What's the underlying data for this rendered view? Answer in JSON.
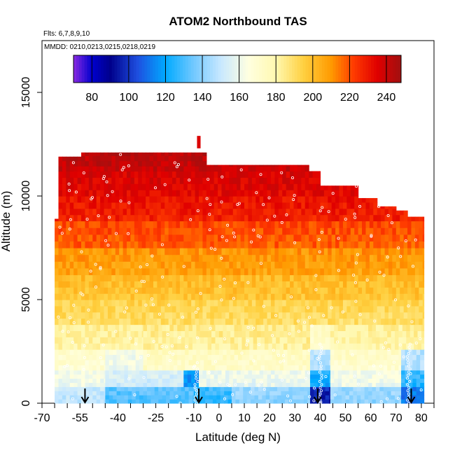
{
  "chart_data": {
    "type": "heatmap",
    "title": "ATOM2 Northbound TAS",
    "annotations": {
      "flights": "Flts: 6,7,8,9,10",
      "dates": "MMDD: 0210,0213,0215,0218,0219"
    },
    "xlabel": "Latitude (deg N)",
    "ylabel": "Altitude (m)",
    "xlim": [
      -70,
      85
    ],
    "ylim": [
      0,
      17500
    ],
    "x_ticks": [
      -70,
      -55,
      -40,
      -25,
      -10,
      0,
      10,
      20,
      30,
      40,
      50,
      60,
      70,
      80
    ],
    "x_tick_labels": [
      "-70",
      "-55",
      "-40",
      "-25",
      "-10",
      "0",
      "10",
      "20",
      "30",
      "40",
      "50",
      "60",
      "70",
      "80"
    ],
    "y_ticks": [
      0,
      5000,
      10000,
      15000
    ],
    "y_tick_labels": [
      "0",
      "5000",
      "10000",
      "15000"
    ],
    "colorbar": {
      "range": [
        70,
        248
      ],
      "ticks": [
        80,
        100,
        120,
        140,
        160,
        180,
        200,
        220,
        240
      ],
      "tick_labels": [
        "80",
        "100",
        "120",
        "140",
        "160",
        "180",
        "200",
        "220",
        "240"
      ],
      "palette_stops": [
        [
          70,
          "#8A2BE2"
        ],
        [
          80,
          "#0000CD"
        ],
        [
          90,
          "#00008B"
        ],
        [
          105,
          "#1E50E0"
        ],
        [
          120,
          "#00AAFF"
        ],
        [
          135,
          "#70C8FF"
        ],
        [
          150,
          "#C8E8FF"
        ],
        [
          165,
          "#FFFFE0"
        ],
        [
          180,
          "#FFF8B0"
        ],
        [
          195,
          "#FFD040"
        ],
        [
          210,
          "#FF9A00"
        ],
        [
          222,
          "#FF3C00"
        ],
        [
          235,
          "#E00000"
        ],
        [
          248,
          "#A01010"
        ]
      ]
    },
    "description": "Northbound curtain of true airspeed (TAS); speed increases with altitude, low values near surface and in profiles near 38N and 75N.",
    "top_boundary": [
      [
        -63,
        11900
      ],
      [
        -55,
        12100
      ],
      [
        -45,
        12100
      ],
      [
        -30,
        12100
      ],
      [
        -20,
        12100
      ],
      [
        -10,
        12100
      ],
      [
        -5,
        11500
      ],
      [
        5,
        11500
      ],
      [
        15,
        11500
      ],
      [
        25,
        11500
      ],
      [
        35,
        11200
      ],
      [
        40,
        10500
      ],
      [
        50,
        10500
      ],
      [
        55,
        9900
      ],
      [
        62,
        9500
      ],
      [
        70,
        9300
      ],
      [
        75,
        9000
      ],
      [
        81,
        8900
      ]
    ],
    "rows": [
      {
        "alt": [
          0,
          800
        ],
        "lat_segments": [
          [
            -65,
            -45,
            148
          ],
          [
            -45,
            -10,
            130
          ],
          [
            -10,
            5,
            125
          ],
          [
            5,
            36,
            140
          ],
          [
            36,
            44,
            95
          ],
          [
            44,
            72,
            140
          ],
          [
            72,
            81,
            110
          ]
        ]
      },
      {
        "alt": [
          800,
          1600
        ],
        "lat_segments": [
          [
            -65,
            -45,
            160
          ],
          [
            -45,
            -14,
            152
          ],
          [
            -14,
            -8,
            115
          ],
          [
            -8,
            36,
            158
          ],
          [
            36,
            44,
            120
          ],
          [
            44,
            72,
            160
          ],
          [
            72,
            81,
            125
          ]
        ]
      },
      {
        "alt": [
          1600,
          2600
        ],
        "lat_segments": [
          [
            -65,
            -45,
            168
          ],
          [
            -45,
            -30,
            160
          ],
          [
            -30,
            36,
            172
          ],
          [
            36,
            44,
            145
          ],
          [
            44,
            72,
            170
          ],
          [
            72,
            81,
            145
          ]
        ]
      },
      {
        "alt": [
          2600,
          3800
        ],
        "lat_segments": [
          [
            -65,
            -30,
            180
          ],
          [
            -30,
            36,
            182
          ],
          [
            36,
            44,
            170
          ],
          [
            44,
            81,
            180
          ]
        ]
      },
      {
        "alt": [
          3800,
          5000
        ],
        "lat_segments": [
          [
            -65,
            81,
            190
          ]
        ]
      },
      {
        "alt": [
          5000,
          6200
        ],
        "lat_segments": [
          [
            -65,
            81,
            198
          ]
        ]
      },
      {
        "alt": [
          6200,
          7500
        ],
        "lat_segments": [
          [
            -65,
            81,
            207
          ]
        ]
      },
      {
        "alt": [
          7500,
          8800
        ],
        "lat_segments": [
          [
            -65,
            81,
            218
          ]
        ]
      },
      {
        "alt": [
          8800,
          10000
        ],
        "lat_segments": [
          [
            -65,
            81,
            228
          ]
        ]
      },
      {
        "alt": [
          10000,
          11200
        ],
        "lat_segments": [
          [
            -65,
            81,
            234
          ]
        ]
      },
      {
        "alt": [
          11200,
          12200
        ],
        "lat_segments": [
          [
            -65,
            81,
            240
          ]
        ]
      }
    ],
    "spikes": [
      [
        -8,
        12300,
        12900,
        236
      ]
    ],
    "arrows": [
      -53,
      -8,
      39,
      76
    ]
  }
}
